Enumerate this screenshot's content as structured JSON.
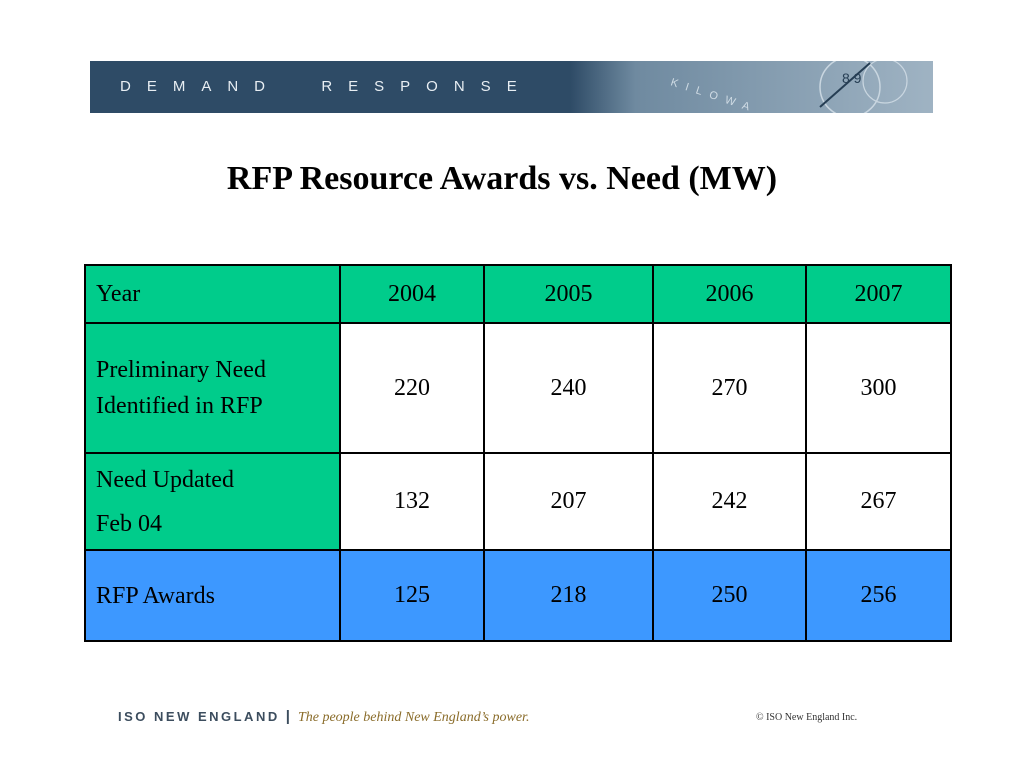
{
  "banner": {
    "title": "DEMAND  RESPONSE",
    "art_text": "KILOWA",
    "art_digits": "8 9"
  },
  "slide": {
    "title": "RFP Resource Awards vs. Need (MW)"
  },
  "table": {
    "header": [
      "Year",
      "2004",
      "2005",
      "2006",
      "2007"
    ],
    "rows": [
      {
        "label_lines": [
          "Preliminary Need",
          "Identified in RFP"
        ],
        "values": [
          "220",
          "240",
          "270",
          "300"
        ]
      },
      {
        "label_lines": [
          "Need Updated",
          "Feb 04"
        ],
        "values": [
          "132",
          "207",
          "242",
          "267"
        ]
      },
      {
        "label_lines": [
          "RFP Awards"
        ],
        "values": [
          "125",
          "218",
          "250",
          "256"
        ]
      }
    ]
  },
  "footer": {
    "org": "ISO NEW ENGLAND",
    "separator": "|",
    "tagline": "The people behind New England’s power.",
    "copyright": "© ISO New England Inc."
  },
  "colors": {
    "banner": "#2e4b66",
    "green_cells": "#00cc8b",
    "blue_row": "#3d98ff"
  }
}
